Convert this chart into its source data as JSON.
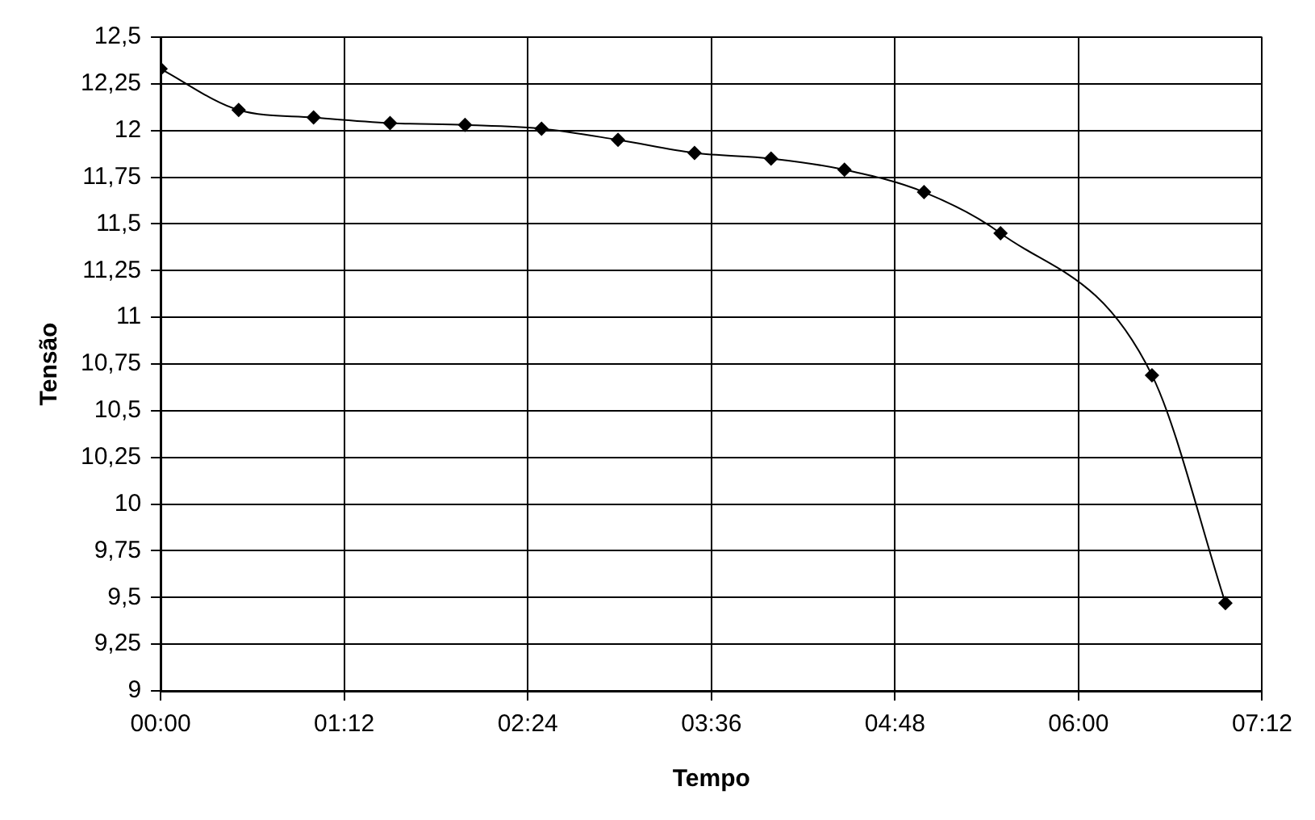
{
  "chart_data": {
    "type": "line",
    "xlabel": "Tempo",
    "ylabel": "Tensão",
    "x": [
      0,
      0.51,
      1.0,
      1.5,
      1.99,
      2.49,
      2.99,
      3.49,
      3.99,
      4.47,
      4.99,
      5.49,
      6.48,
      6.96
    ],
    "series": [
      {
        "color": "#000000",
        "values": [
          12.33,
          12.11,
          12.07,
          12.04,
          12.03,
          12.01,
          11.95,
          11.88,
          11.85,
          11.79,
          11.67,
          11.45,
          10.69,
          9.47
        ]
      }
    ],
    "xlim": [
      0,
      7.2
    ],
    "xticks": [
      {
        "value": 0,
        "label": "00:00"
      },
      {
        "value": 1.2,
        "label": "01:12"
      },
      {
        "value": 2.4,
        "label": "02:24"
      },
      {
        "value": 3.6,
        "label": "03:36"
      },
      {
        "value": 4.8,
        "label": "04:48"
      },
      {
        "value": 6.0,
        "label": "06:00"
      },
      {
        "value": 7.2,
        "label": "07:12"
      }
    ],
    "ylim": [
      9,
      12.5
    ],
    "yticks": [
      9,
      {
        "value": 9.25,
        "label": "9,25"
      },
      {
        "value": 9.5,
        "label": "9,5"
      },
      {
        "value": 9.75,
        "label": "9,75"
      },
      10,
      {
        "value": 10.25,
        "label": "10,25"
      },
      {
        "value": 10.5,
        "label": "10,5"
      },
      {
        "value": 10.75,
        "label": "10,75"
      },
      11,
      {
        "value": 11.25,
        "label": "11,25"
      },
      {
        "value": 11.5,
        "label": "11,5"
      },
      {
        "value": 11.75,
        "label": "11,75"
      },
      12,
      {
        "value": 12.25,
        "label": "12,25"
      },
      {
        "value": 12.5,
        "label": "12,5"
      }
    ],
    "grid": true,
    "marker": "diamond",
    "line_style": "solid",
    "legend": false
  }
}
